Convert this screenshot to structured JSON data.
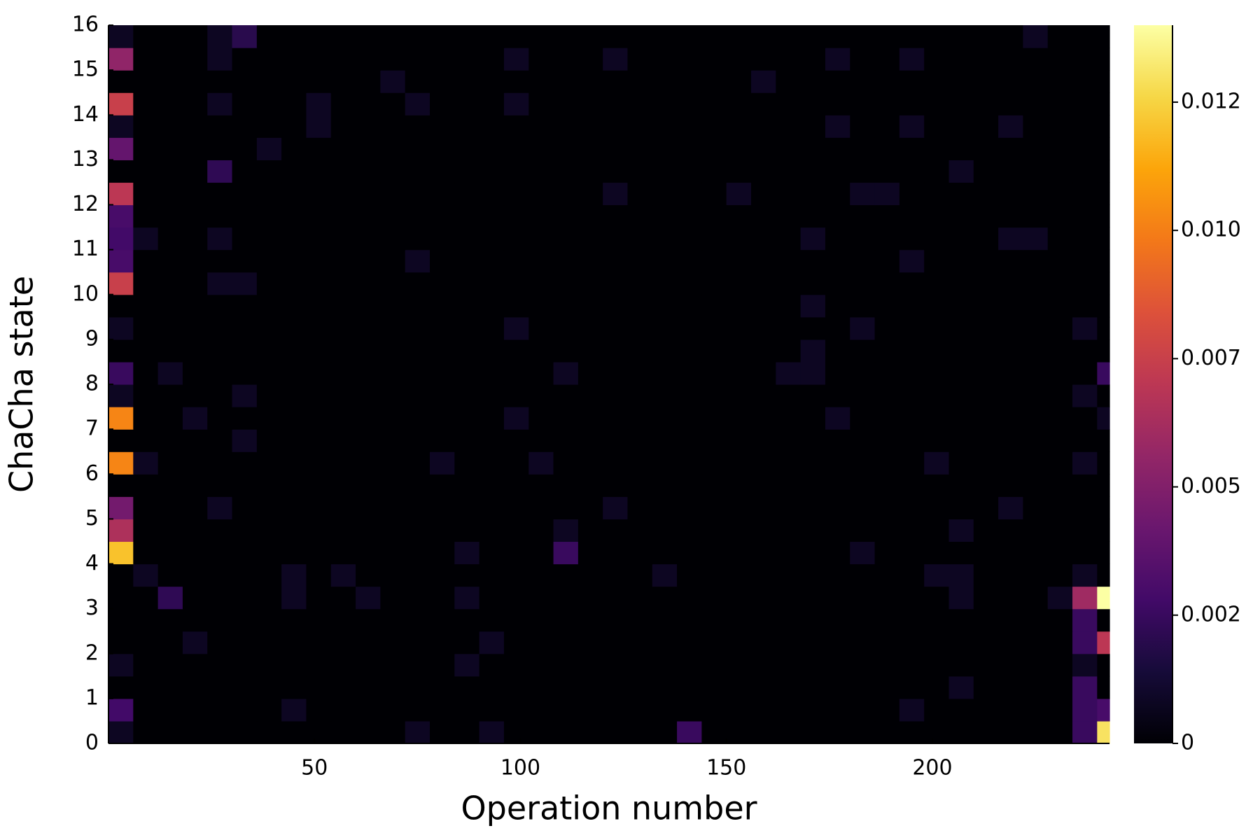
{
  "chart_data": {
    "type": "heatmap",
    "xlabel": "Operation number",
    "ylabel": "ChaCha state",
    "colormap": "inferno",
    "xlim": [
      0,
      243
    ],
    "ylim": [
      0,
      16
    ],
    "xticks": [
      50,
      100,
      150,
      200
    ],
    "yticks": [
      0,
      1,
      2,
      3,
      4,
      5,
      6,
      7,
      8,
      9,
      10,
      11,
      12,
      13,
      14,
      15,
      16
    ],
    "clim": [
      0,
      0.014
    ],
    "cticks": [
      {
        "value": 0,
        "label": "0"
      },
      {
        "value": 0.0025,
        "label": "0.002"
      },
      {
        "value": 0.005,
        "label": "0.005"
      },
      {
        "value": 0.0075,
        "label": "0.007"
      },
      {
        "value": 0.01,
        "label": "0.010"
      },
      {
        "value": 0.0125,
        "label": "0.012"
      }
    ],
    "x_edges": [
      0,
      6,
      12,
      18,
      24,
      30,
      36,
      42,
      48,
      54,
      60,
      66,
      72,
      78,
      84,
      90,
      96,
      102,
      108,
      114,
      120,
      126,
      132,
      138,
      144,
      150,
      156,
      162,
      168,
      174,
      180,
      186,
      192,
      198,
      204,
      210,
      216,
      222,
      228,
      234,
      240,
      243
    ],
    "y_edges": [
      0,
      0.5,
      1,
      1.5,
      2,
      2.5,
      3,
      3.5,
      4,
      4.5,
      5,
      5.5,
      6,
      6.5,
      7,
      7.5,
      8,
      8.5,
      9,
      9.5,
      10,
      10.5,
      11,
      11.5,
      12,
      12.5,
      13,
      13.5,
      14,
      14.5,
      15,
      15.5,
      16
    ],
    "z": [
      [
        0.0008,
        0,
        0,
        0,
        0,
        0,
        0,
        0,
        0,
        0,
        0,
        0,
        0.0008,
        0,
        0,
        0.0008,
        0,
        0,
        0,
        0,
        0,
        0,
        0,
        0.0025,
        0,
        0,
        0,
        0,
        0,
        0,
        0,
        0,
        0,
        0,
        0,
        0,
        0,
        0,
        0,
        0.0025,
        0.013
      ],
      [
        0.0028,
        0,
        0,
        0,
        0,
        0,
        0,
        0.0008,
        0,
        0,
        0,
        0,
        0,
        0,
        0,
        0,
        0,
        0,
        0,
        0,
        0,
        0,
        0,
        0,
        0,
        0,
        0,
        0,
        0,
        0,
        0,
        0,
        0.0008,
        0,
        0,
        0,
        0,
        0,
        0,
        0.0025,
        0.003
      ],
      [
        0,
        0,
        0,
        0,
        0,
        0,
        0,
        0,
        0,
        0,
        0,
        0,
        0,
        0,
        0,
        0,
        0,
        0,
        0,
        0,
        0,
        0,
        0,
        0,
        0,
        0,
        0,
        0,
        0,
        0,
        0,
        0,
        0,
        0,
        0.0008,
        0,
        0,
        0,
        0,
        0.0025,
        0
      ],
      [
        0.0008,
        0,
        0,
        0,
        0,
        0,
        0,
        0,
        0,
        0,
        0,
        0,
        0,
        0,
        0.0008,
        0,
        0,
        0,
        0,
        0,
        0,
        0,
        0,
        0,
        0,
        0,
        0,
        0,
        0,
        0,
        0,
        0,
        0,
        0,
        0,
        0,
        0,
        0,
        0,
        0.0008,
        0
      ],
      [
        0,
        0,
        0,
        0.0008,
        0,
        0,
        0,
        0,
        0,
        0,
        0,
        0,
        0,
        0,
        0,
        0.0008,
        0,
        0,
        0,
        0,
        0,
        0,
        0,
        0,
        0,
        0,
        0,
        0,
        0,
        0,
        0,
        0,
        0,
        0,
        0,
        0,
        0,
        0,
        0,
        0.0025,
        0.007
      ],
      [
        0,
        0,
        0,
        0,
        0,
        0,
        0,
        0,
        0,
        0,
        0,
        0,
        0,
        0,
        0,
        0,
        0,
        0,
        0,
        0,
        0,
        0,
        0,
        0,
        0,
        0,
        0,
        0,
        0,
        0,
        0,
        0,
        0,
        0,
        0,
        0,
        0,
        0,
        0,
        0.0025,
        0
      ],
      [
        0,
        0,
        0.0022,
        0,
        0,
        0,
        0,
        0.0008,
        0,
        0,
        0.0008,
        0,
        0,
        0,
        0.0008,
        0,
        0,
        0,
        0,
        0,
        0,
        0,
        0,
        0,
        0,
        0,
        0,
        0,
        0,
        0,
        0,
        0,
        0,
        0,
        0.0008,
        0,
        0,
        0,
        0.0008,
        0.006,
        0.014
      ],
      [
        0,
        0.0008,
        0,
        0,
        0,
        0,
        0,
        0.0008,
        0,
        0.0008,
        0,
        0,
        0,
        0,
        0,
        0,
        0,
        0,
        0,
        0,
        0,
        0,
        0.0008,
        0,
        0,
        0,
        0,
        0,
        0,
        0,
        0,
        0,
        0,
        0.0008,
        0.0008,
        0,
        0,
        0,
        0,
        0.0008,
        0
      ],
      [
        0.012,
        0,
        0,
        0,
        0,
        0,
        0,
        0,
        0,
        0,
        0,
        0,
        0,
        0,
        0.0008,
        0,
        0,
        0,
        0.0025,
        0,
        0,
        0,
        0,
        0,
        0,
        0,
        0,
        0,
        0,
        0,
        0.0008,
        0,
        0,
        0,
        0,
        0,
        0,
        0,
        0,
        0,
        0
      ],
      [
        0.0065,
        0,
        0,
        0,
        0,
        0,
        0,
        0,
        0,
        0,
        0,
        0,
        0,
        0,
        0,
        0,
        0,
        0,
        0.0008,
        0,
        0,
        0,
        0,
        0,
        0,
        0,
        0,
        0,
        0,
        0,
        0,
        0,
        0,
        0,
        0.0008,
        0,
        0,
        0,
        0,
        0,
        0
      ],
      [
        0.0045,
        0,
        0,
        0,
        0.0008,
        0,
        0,
        0,
        0,
        0,
        0,
        0,
        0,
        0,
        0,
        0,
        0,
        0,
        0,
        0,
        0.0008,
        0,
        0,
        0,
        0,
        0,
        0,
        0,
        0,
        0,
        0,
        0,
        0,
        0,
        0,
        0,
        0.0008,
        0,
        0,
        0,
        0
      ],
      [
        0,
        0,
        0,
        0,
        0,
        0,
        0,
        0,
        0,
        0,
        0,
        0,
        0,
        0,
        0,
        0,
        0,
        0,
        0,
        0,
        0,
        0,
        0,
        0,
        0,
        0,
        0,
        0,
        0,
        0,
        0,
        0,
        0,
        0,
        0,
        0,
        0,
        0,
        0,
        0,
        0
      ],
      [
        0.0102,
        0.0008,
        0,
        0,
        0,
        0,
        0,
        0,
        0,
        0,
        0,
        0,
        0,
        0.0008,
        0,
        0,
        0,
        0.0008,
        0,
        0,
        0,
        0,
        0,
        0,
        0,
        0,
        0,
        0,
        0,
        0,
        0,
        0,
        0,
        0.0008,
        0,
        0,
        0,
        0,
        0,
        0.0008,
        0
      ],
      [
        0,
        0,
        0,
        0,
        0,
        0.0008,
        0,
        0,
        0,
        0,
        0,
        0,
        0,
        0,
        0,
        0,
        0,
        0,
        0,
        0,
        0,
        0,
        0,
        0,
        0,
        0,
        0,
        0,
        0,
        0,
        0,
        0,
        0,
        0,
        0,
        0,
        0,
        0,
        0,
        0,
        0
      ],
      [
        0.0102,
        0,
        0,
        0.0008,
        0,
        0,
        0,
        0,
        0,
        0,
        0,
        0,
        0,
        0,
        0,
        0,
        0.0008,
        0,
        0,
        0,
        0,
        0,
        0,
        0,
        0,
        0,
        0,
        0,
        0,
        0.0008,
        0,
        0,
        0,
        0,
        0,
        0,
        0,
        0,
        0,
        0,
        0.0008
      ],
      [
        0.0008,
        0,
        0,
        0,
        0,
        0.0008,
        0,
        0,
        0,
        0,
        0,
        0,
        0,
        0,
        0,
        0,
        0,
        0,
        0,
        0,
        0,
        0,
        0,
        0,
        0,
        0,
        0,
        0,
        0,
        0,
        0,
        0,
        0,
        0,
        0,
        0,
        0,
        0,
        0,
        0.0008,
        0
      ],
      [
        0.0025,
        0,
        0.0008,
        0,
        0,
        0,
        0,
        0,
        0,
        0,
        0,
        0,
        0,
        0,
        0,
        0,
        0,
        0,
        0.0008,
        0,
        0,
        0,
        0,
        0,
        0,
        0,
        0,
        0.0008,
        0.0008,
        0,
        0,
        0,
        0,
        0,
        0,
        0,
        0,
        0,
        0,
        0,
        0.0025
      ],
      [
        0,
        0,
        0,
        0,
        0,
        0,
        0,
        0,
        0,
        0,
        0,
        0,
        0,
        0,
        0,
        0,
        0,
        0,
        0,
        0,
        0,
        0,
        0,
        0,
        0,
        0,
        0,
        0,
        0.0008,
        0,
        0,
        0,
        0,
        0,
        0,
        0,
        0,
        0,
        0,
        0,
        0
      ],
      [
        0.0008,
        0,
        0,
        0,
        0,
        0,
        0,
        0,
        0,
        0,
        0,
        0,
        0,
        0,
        0,
        0,
        0.0008,
        0,
        0,
        0,
        0,
        0,
        0,
        0,
        0,
        0,
        0,
        0,
        0,
        0,
        0.0008,
        0,
        0,
        0,
        0,
        0,
        0,
        0,
        0,
        0.0008,
        0
      ],
      [
        0,
        0,
        0,
        0,
        0,
        0,
        0,
        0,
        0,
        0,
        0,
        0,
        0,
        0,
        0,
        0,
        0,
        0,
        0,
        0,
        0,
        0,
        0,
        0,
        0,
        0,
        0,
        0,
        0.0008,
        0,
        0,
        0,
        0,
        0,
        0,
        0,
        0,
        0,
        0,
        0,
        0
      ],
      [
        0.0075,
        0,
        0,
        0,
        0.0008,
        0.0008,
        0,
        0,
        0,
        0,
        0,
        0,
        0,
        0,
        0,
        0,
        0,
        0,
        0,
        0,
        0,
        0,
        0,
        0,
        0,
        0,
        0,
        0,
        0,
        0,
        0,
        0,
        0,
        0,
        0,
        0,
        0,
        0,
        0,
        0,
        0
      ],
      [
        0.003,
        0,
        0,
        0,
        0,
        0,
        0,
        0,
        0,
        0,
        0,
        0,
        0.0008,
        0,
        0,
        0,
        0,
        0,
        0,
        0,
        0,
        0,
        0,
        0,
        0,
        0,
        0,
        0,
        0,
        0,
        0,
        0,
        0.0008,
        0,
        0,
        0,
        0,
        0,
        0,
        0,
        0
      ],
      [
        0.0028,
        0.0008,
        0,
        0,
        0.0008,
        0,
        0,
        0,
        0,
        0,
        0,
        0,
        0,
        0,
        0,
        0,
        0,
        0,
        0,
        0,
        0,
        0,
        0,
        0,
        0,
        0,
        0,
        0,
        0.0008,
        0,
        0,
        0,
        0,
        0,
        0,
        0,
        0.0008,
        0.0008,
        0,
        0,
        0
      ],
      [
        0.003,
        0,
        0,
        0,
        0,
        0,
        0,
        0,
        0,
        0,
        0,
        0,
        0,
        0,
        0,
        0,
        0,
        0,
        0,
        0,
        0,
        0,
        0,
        0,
        0,
        0,
        0,
        0,
        0,
        0,
        0,
        0,
        0,
        0,
        0,
        0,
        0,
        0,
        0,
        0,
        0
      ],
      [
        0.007,
        0,
        0,
        0,
        0,
        0,
        0,
        0,
        0,
        0,
        0,
        0,
        0,
        0,
        0,
        0,
        0,
        0,
        0,
        0,
        0.0008,
        0,
        0,
        0,
        0,
        0.0008,
        0,
        0,
        0,
        0,
        0.0008,
        0.0008,
        0,
        0,
        0,
        0,
        0,
        0,
        0,
        0,
        0
      ],
      [
        0,
        0,
        0,
        0,
        0.0022,
        0,
        0,
        0,
        0,
        0,
        0,
        0,
        0,
        0,
        0,
        0,
        0,
        0,
        0,
        0,
        0,
        0,
        0,
        0,
        0,
        0,
        0,
        0,
        0,
        0,
        0,
        0,
        0,
        0,
        0.0008,
        0,
        0,
        0,
        0,
        0,
        0
      ],
      [
        0.004,
        0,
        0,
        0,
        0,
        0,
        0.0008,
        0,
        0,
        0,
        0,
        0,
        0,
        0,
        0,
        0,
        0,
        0,
        0,
        0,
        0,
        0,
        0,
        0,
        0,
        0,
        0,
        0,
        0,
        0,
        0,
        0,
        0,
        0,
        0,
        0,
        0,
        0,
        0,
        0,
        0
      ],
      [
        0.0008,
        0,
        0,
        0,
        0,
        0,
        0,
        0,
        0.0008,
        0,
        0,
        0,
        0,
        0,
        0,
        0,
        0,
        0,
        0,
        0,
        0,
        0,
        0,
        0,
        0,
        0,
        0,
        0,
        0,
        0.0008,
        0,
        0,
        0.0008,
        0,
        0,
        0,
        0.0008,
        0,
        0,
        0,
        0
      ],
      [
        0.0075,
        0,
        0,
        0,
        0.0008,
        0,
        0,
        0,
        0.0008,
        0,
        0,
        0,
        0.0008,
        0,
        0,
        0,
        0.0008,
        0,
        0,
        0,
        0,
        0,
        0,
        0,
        0,
        0,
        0,
        0,
        0,
        0,
        0,
        0,
        0,
        0,
        0,
        0,
        0,
        0,
        0,
        0,
        0
      ],
      [
        0,
        0,
        0,
        0,
        0,
        0,
        0,
        0,
        0,
        0,
        0,
        0.0008,
        0,
        0,
        0,
        0,
        0,
        0,
        0,
        0,
        0,
        0,
        0,
        0,
        0,
        0,
        0.0008,
        0,
        0,
        0,
        0,
        0,
        0,
        0,
        0,
        0,
        0,
        0,
        0,
        0,
        0
      ],
      [
        0.0055,
        0,
        0,
        0,
        0.0008,
        0,
        0,
        0,
        0,
        0,
        0,
        0,
        0,
        0,
        0,
        0,
        0.0008,
        0,
        0,
        0,
        0.0008,
        0,
        0,
        0,
        0,
        0,
        0,
        0,
        0,
        0.0008,
        0,
        0,
        0.0008,
        0,
        0,
        0,
        0,
        0,
        0,
        0,
        0
      ],
      [
        0.0008,
        0,
        0,
        0,
        0.0008,
        0.002,
        0,
        0,
        0,
        0,
        0,
        0,
        0,
        0,
        0,
        0,
        0,
        0,
        0,
        0,
        0,
        0,
        0,
        0,
        0,
        0,
        0,
        0,
        0,
        0,
        0,
        0,
        0,
        0,
        0,
        0,
        0,
        0.0008,
        0,
        0,
        0
      ]
    ]
  }
}
